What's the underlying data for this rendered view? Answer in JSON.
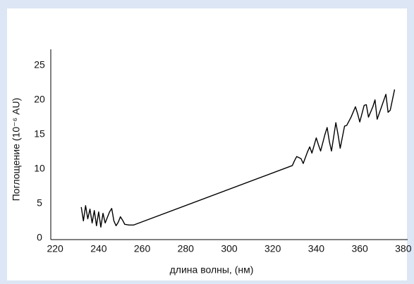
{
  "chart_data": {
    "type": "line",
    "x_label": "длина волны, (нм)",
    "y_label": "Поглощение (10⁻⁶ AU)",
    "x": [
      232,
      233,
      234,
      235,
      236,
      237,
      238,
      239,
      240,
      241,
      242,
      243,
      244,
      245,
      246,
      247,
      248,
      249,
      250,
      251,
      252,
      254,
      256,
      329,
      330,
      331,
      333,
      334,
      336,
      337,
      338,
      340,
      341,
      342,
      344,
      345,
      346,
      347,
      349,
      350,
      351,
      353,
      354,
      356,
      358,
      359,
      360,
      362,
      363,
      364,
      366,
      367,
      368,
      370,
      372,
      373,
      374,
      376
    ],
    "series": [
      {
        "color": "#000000",
        "values": [
          4.5,
          2.5,
          4.7,
          2.8,
          4.2,
          2.2,
          4.0,
          1.8,
          3.8,
          1.6,
          3.6,
          2.2,
          3.0,
          3.8,
          4.3,
          2.5,
          1.8,
          2.3,
          3.1,
          2.6,
          2.0,
          1.9,
          1.9,
          10.5,
          11.2,
          11.8,
          11.5,
          10.8,
          12.5,
          13.2,
          12.3,
          14.5,
          13.5,
          12.6,
          15.0,
          16.0,
          14.0,
          12.6,
          16.7,
          15.0,
          13.0,
          16.2,
          16.3,
          17.5,
          19.0,
          18.0,
          16.8,
          19.2,
          19.3,
          17.5,
          19.0,
          20.0,
          17.2,
          19.0,
          20.8,
          18.2,
          18.5,
          21.5
        ]
      }
    ],
    "xlim": [
      218,
      382
    ],
    "xticks": [
      220,
      240,
      260,
      280,
      300,
      320,
      340,
      360,
      380
    ],
    "ylim": [
      0,
      27.3
    ],
    "yticks": [
      0,
      5,
      10,
      15,
      20,
      25
    ]
  }
}
